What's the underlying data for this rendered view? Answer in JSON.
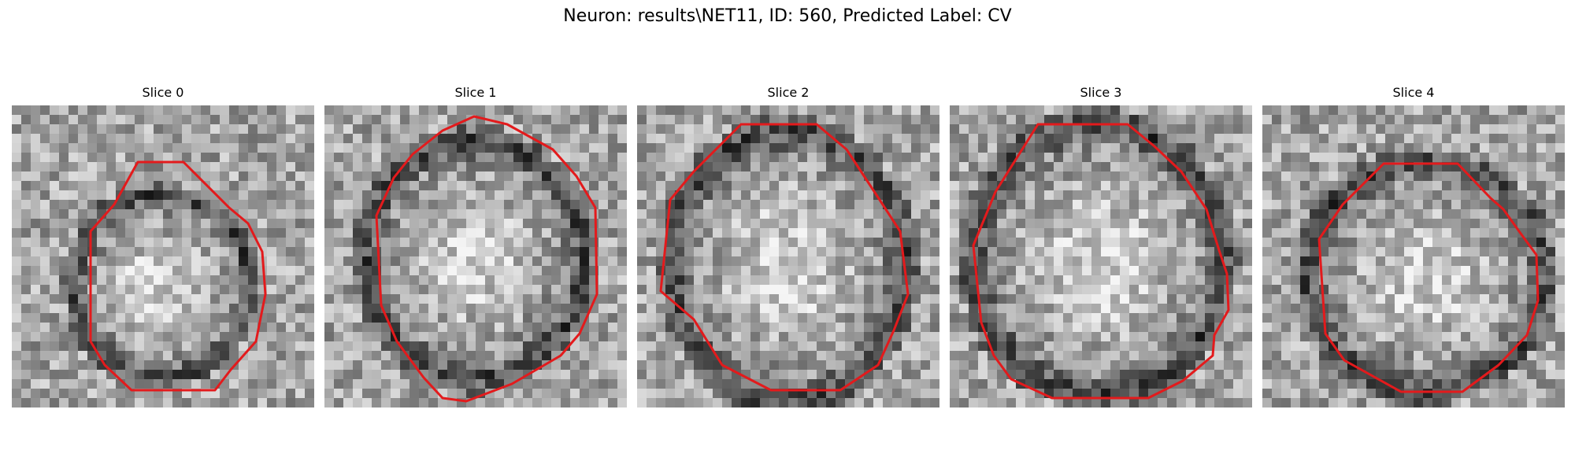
{
  "figure": {
    "title": "Neuron: results\\NET11, ID: 560, Predicted Label: CV",
    "outline_color": "#e31a1c",
    "colormap": "grayscale"
  },
  "panels": [
    {
      "title": "Slice 0"
    },
    {
      "title": "Slice 1"
    },
    {
      "title": "Slice 2"
    },
    {
      "title": "Slice 3"
    },
    {
      "title": "Slice 4"
    }
  ]
}
